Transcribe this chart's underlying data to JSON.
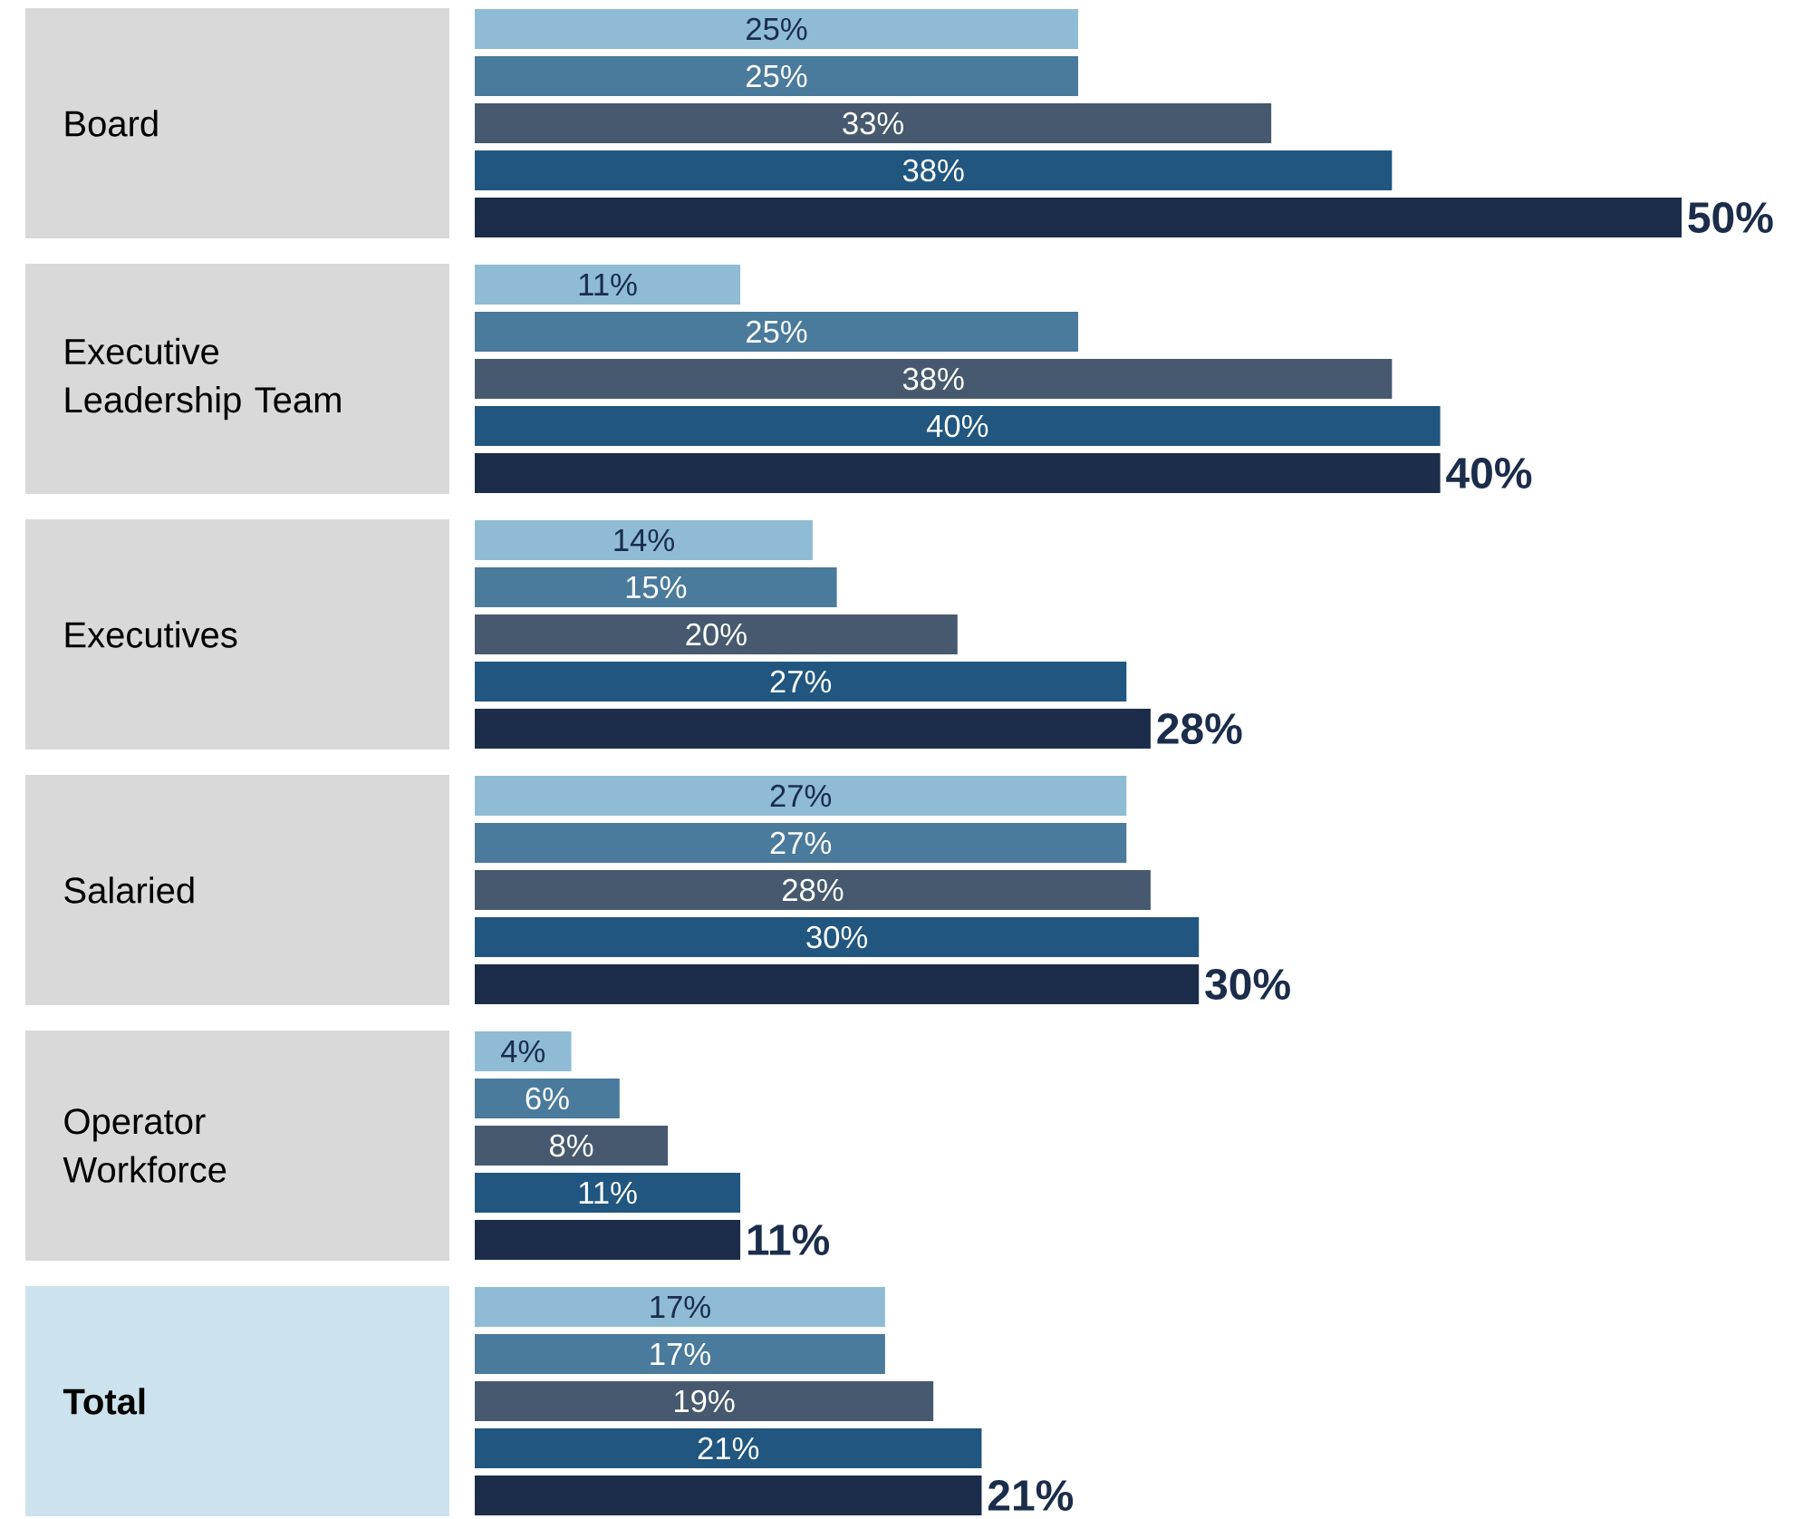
{
  "chart_data": {
    "type": "bar",
    "orientation": "horizontal",
    "categories": [
      "Board",
      "Executive Leadership Team",
      "Executives",
      "Salaried",
      "Operator Workforce",
      "Total"
    ],
    "series": [
      {
        "color": "#8fbcd4",
        "values": [
          25,
          11,
          14,
          27,
          4,
          17
        ],
        "value_labels": [
          "25%",
          "11%",
          "14%",
          "27%",
          "4%",
          "17%"
        ]
      },
      {
        "color": "#4a7a9c",
        "values": [
          25,
          25,
          15,
          27,
          6,
          17
        ],
        "value_labels": [
          "25%",
          "25%",
          "15%",
          "27%",
          "6%",
          "17%"
        ]
      },
      {
        "color": "#46596e",
        "values": [
          33,
          38,
          20,
          28,
          8,
          19
        ],
        "value_labels": [
          "33%",
          "38%",
          "20%",
          "28%",
          "8%",
          "19%"
        ]
      },
      {
        "color": "#20567f",
        "values": [
          38,
          40,
          27,
          30,
          11,
          21
        ],
        "value_labels": [
          "38%",
          "40%",
          "27%",
          "30%",
          "11%",
          "21%"
        ]
      },
      {
        "color": "#1b2d4b",
        "values": [
          50,
          40,
          28,
          30,
          11,
          21
        ],
        "value_labels": [
          "50%",
          "40%",
          "28%",
          "30%",
          "11%",
          "21%"
        ]
      }
    ],
    "stacked": false
  }
}
